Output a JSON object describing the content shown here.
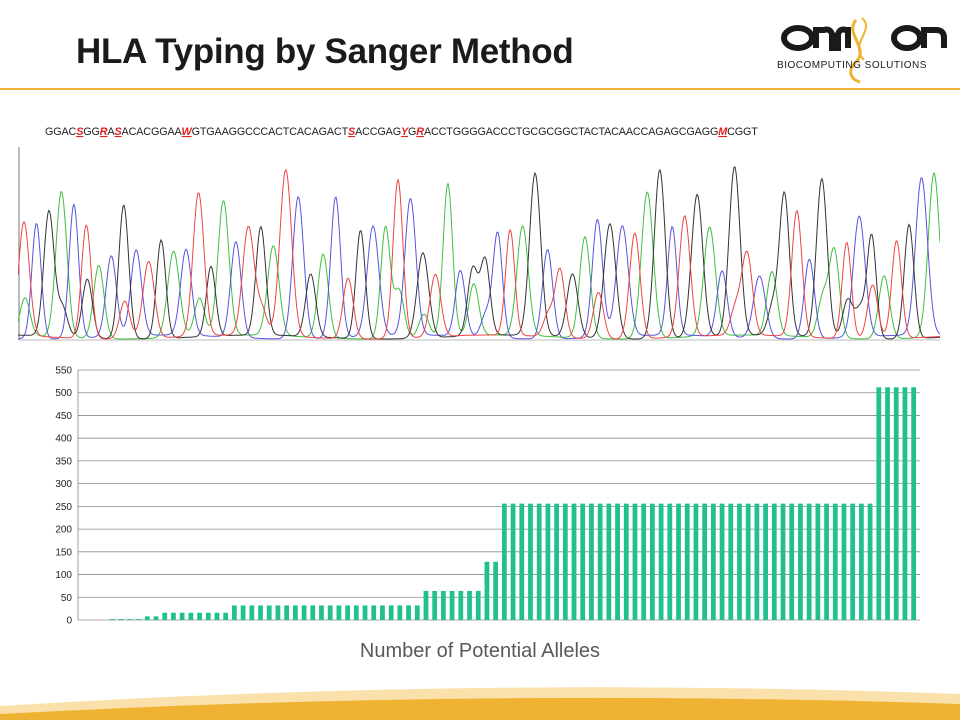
{
  "slide": {
    "title": "HLA Typing by Sanger Method",
    "caption": "Number of Potential Alleles"
  },
  "logo": {
    "name": "omixon",
    "tagline": "Biocomputing Solutions",
    "colors": {
      "dark": "#1a1a1a",
      "accent": "#f0b232"
    }
  },
  "sequence": {
    "segments": [
      {
        "t": "GGAC",
        "amb": false
      },
      {
        "t": "S",
        "amb": true
      },
      {
        "t": "GG",
        "amb": false
      },
      {
        "t": "R",
        "amb": true
      },
      {
        "t": "A",
        "amb": false
      },
      {
        "t": "S",
        "amb": true
      },
      {
        "t": "ACACGGAA",
        "amb": false
      },
      {
        "t": "W",
        "amb": true
      },
      {
        "t": "GTGAAGGCCCACTCACAGACT",
        "amb": false
      },
      {
        "t": "S",
        "amb": true
      },
      {
        "t": "ACCGAG",
        "amb": false
      },
      {
        "t": "Y",
        "amb": true
      },
      {
        "t": "G",
        "amb": false
      },
      {
        "t": "R",
        "amb": true
      },
      {
        "t": "ACCTGGGGACCCTGCGCGGCTACTACAACCAGAGCGAGG",
        "amb": false
      },
      {
        "t": "M",
        "amb": true
      },
      {
        "t": "CGGT",
        "amb": false
      }
    ],
    "colors": {
      "normal": "#222222",
      "ambiguous": "#e02020"
    }
  },
  "trace": {
    "colors": {
      "A": "#3fbf3f",
      "C": "#5555dd",
      "G": "#333333",
      "T": "#ee4444"
    }
  },
  "chart_data": {
    "type": "bar",
    "title": "",
    "xlabel": "Number of Potential Alleles",
    "ylabel": "",
    "ylim": [
      0,
      550
    ],
    "yticks": [
      0,
      50,
      100,
      150,
      200,
      250,
      300,
      350,
      400,
      450,
      500,
      550
    ],
    "grid": true,
    "color": "#22c08e",
    "values": [
      0,
      0,
      0,
      2,
      2,
      2,
      2,
      8,
      8,
      16,
      16,
      16,
      16,
      16,
      16,
      16,
      16,
      32,
      32,
      32,
      32,
      32,
      32,
      32,
      32,
      32,
      32,
      32,
      32,
      32,
      32,
      32,
      32,
      32,
      32,
      32,
      32,
      32,
      32,
      64,
      64,
      64,
      64,
      64,
      64,
      64,
      128,
      128,
      256,
      256,
      256,
      256,
      256,
      256,
      256,
      256,
      256,
      256,
      256,
      256,
      256,
      256,
      256,
      256,
      256,
      256,
      256,
      256,
      256,
      256,
      256,
      256,
      256,
      256,
      256,
      256,
      256,
      256,
      256,
      256,
      256,
      256,
      256,
      256,
      256,
      256,
      256,
      256,
      256,
      256,
      256,
      512,
      512,
      512,
      512,
      512
    ]
  }
}
